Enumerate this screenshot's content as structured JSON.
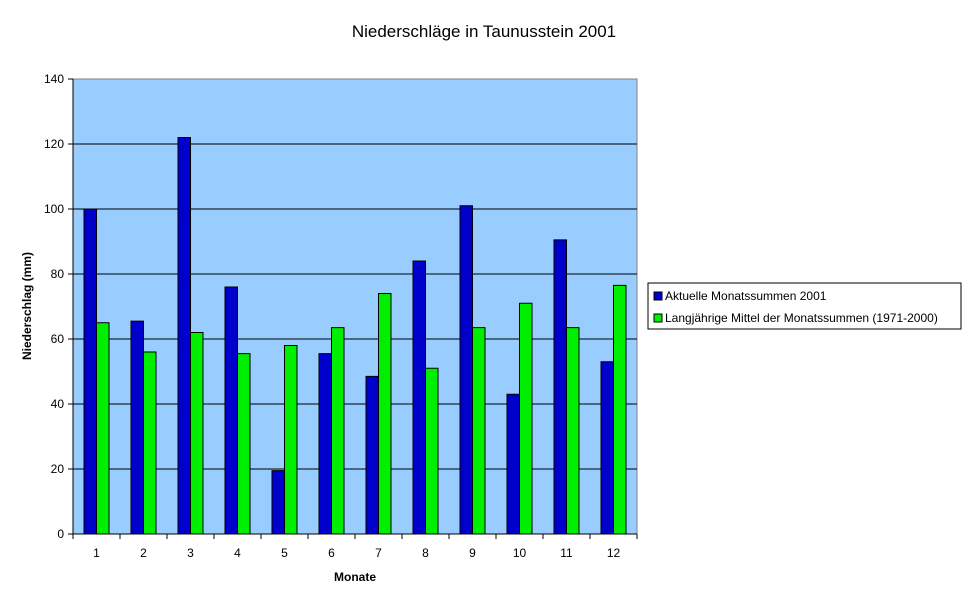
{
  "chart_data": {
    "type": "bar",
    "title": "Niederschläge in Taunusstein 2001",
    "xlabel": "Monate",
    "ylabel": "Niederschlag (mm)",
    "categories": [
      "1",
      "2",
      "3",
      "4",
      "5",
      "6",
      "7",
      "8",
      "9",
      "10",
      "11",
      "12"
    ],
    "ylim": [
      0,
      140
    ],
    "yticks": [
      0,
      20,
      40,
      60,
      80,
      100,
      120,
      140
    ],
    "grid": true,
    "legend_position": "right",
    "plot_background": "#99ccff",
    "series": [
      {
        "name": "Aktuelle Monatssummen 2001",
        "color": "#0000cc",
        "values": [
          100,
          65.5,
          122,
          76,
          19.5,
          55.5,
          48.5,
          84,
          101,
          43,
          90.5,
          53
        ]
      },
      {
        "name": "Langjährige Mittel der Monatssummen (1971-2000)",
        "color": "#00ee00",
        "values": [
          65,
          56,
          62,
          55.5,
          58,
          63.5,
          74,
          51,
          63.5,
          71,
          63.5,
          76.5
        ]
      }
    ]
  }
}
